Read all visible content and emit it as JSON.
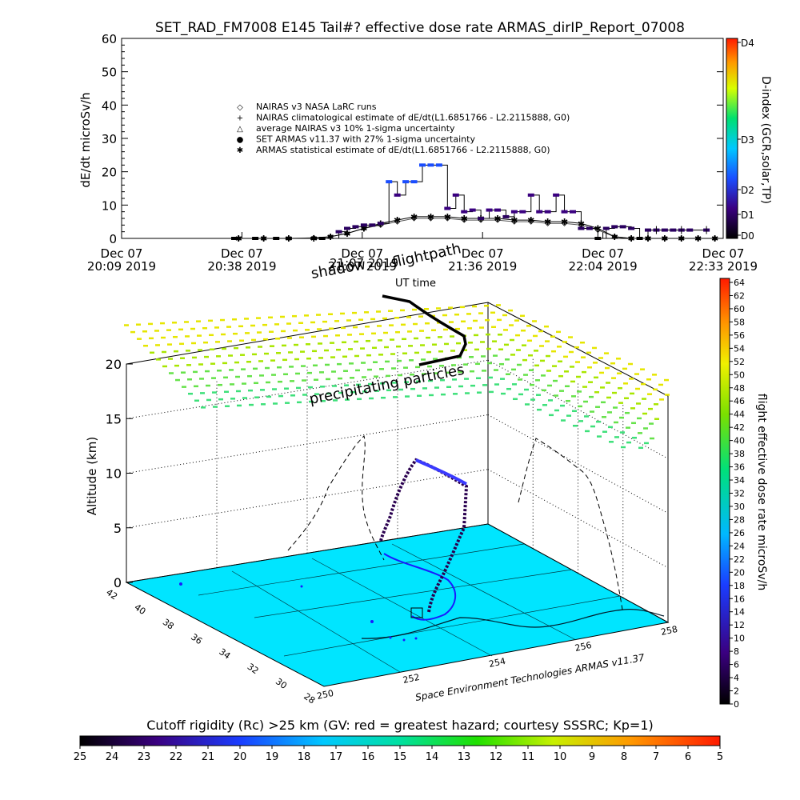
{
  "top": {
    "title": "SET_RAD_FM7008  E145 Tail#? effective dose rate ARMAS_dirIP_Report_07008",
    "ylabel": "dE/dt microSv/h",
    "yticks": [
      "0",
      "10",
      "20",
      "30",
      "40",
      "50",
      "60"
    ],
    "xticks": [
      {
        "l1": "Dec 07",
        "l2": "20:09 2019"
      },
      {
        "l1": "Dec 07",
        "l2": "20:38 2019"
      },
      {
        "l1": "Dec 07",
        "l2": "21:07 2019"
      },
      {
        "l1": "Dec 07",
        "l2": "21:36 2019"
      },
      {
        "l1": "Dec 07",
        "l2": "22:04 2019"
      },
      {
        "l1": "Dec 07",
        "l2": "22:33 2019"
      }
    ],
    "legend": [
      {
        "sym": "◇",
        "text": "NAIRAS v3 NASA LaRC runs"
      },
      {
        "sym": "+",
        "text": "NAIRAS climatological estimate of dE/dt(L1.6851766 - L2.2115888, G0)"
      },
      {
        "sym": "△",
        "text": "average NAIRAS v3 10% 1-sigma uncertainty"
      },
      {
        "sym": "●",
        "text": "SET ARMAS v11.37 with 27% 1-sigma uncertainty"
      },
      {
        "sym": "✱",
        "text": "ARMAS statistical estimate of dE/dt(L1.6851766 - L2.2115888, G0)"
      }
    ],
    "dindex_label": "D-index (GCR,solar,TP)",
    "dindex_ticks": [
      "D4",
      "D3",
      "D2",
      "D1",
      "D0"
    ]
  },
  "chart_data": [
    {
      "type": "line",
      "title": "SET_RAD_FM7008  E145 Tail#? effective dose rate ARMAS_dirIP_Report_07008",
      "xlabel": "",
      "ylabel": "dE/dt microSv/h",
      "ylim": [
        0,
        60
      ],
      "x_unit": "minutes after Dec 07 20:09 2019",
      "xlim": [
        0,
        144
      ],
      "series": [
        {
          "name": "SET ARMAS v11.37 with 27% 1-sigma uncertainty",
          "x": [
            27,
            32,
            37,
            40,
            46,
            48,
            52,
            54,
            56,
            58,
            60,
            62,
            64,
            66,
            68,
            70,
            72,
            74,
            76,
            78,
            80,
            82,
            84,
            86,
            88,
            90,
            92,
            94,
            96,
            98,
            100,
            102,
            104,
            106,
            108,
            110,
            112,
            114,
            116,
            118,
            120,
            122,
            124,
            126,
            128,
            130,
            132,
            134,
            136,
            140
          ],
          "values": [
            0,
            0,
            0,
            0,
            0,
            0,
            2,
            3,
            3.5,
            4,
            4,
            4.5,
            17,
            13,
            17,
            17,
            22,
            22,
            22,
            9,
            13,
            8,
            8.5,
            6,
            8.5,
            8.5,
            6.5,
            8,
            8,
            13,
            8,
            8,
            13,
            8,
            8,
            3,
            3,
            0,
            3,
            3.5,
            3.5,
            3,
            0,
            2.5,
            2.5,
            2.5,
            2.5,
            2.5,
            2.5,
            2.5
          ]
        },
        {
          "name": "ARMAS statistical estimate of dE/dt(L1.6851766 - L2.2115888, G0)",
          "x": [
            28,
            34,
            40,
            46,
            50,
            54,
            58,
            62,
            66,
            70,
            74,
            78,
            82,
            86,
            90,
            94,
            98,
            102,
            106,
            110,
            114,
            118,
            122,
            126,
            130,
            134,
            138,
            142
          ],
          "values": [
            0,
            0,
            0,
            0,
            0.5,
            1.5,
            3,
            4.5,
            5.5,
            6.5,
            6.5,
            6.5,
            6,
            6,
            6,
            5.5,
            5.5,
            5,
            5,
            4.5,
            3,
            0.5,
            0,
            0,
            0,
            0,
            0,
            0
          ]
        },
        {
          "name": "NAIRAS v3 NASA LaRC runs",
          "x": [
            28,
            34,
            40,
            46,
            50,
            54,
            58,
            62,
            66,
            70,
            74,
            78,
            82,
            86,
            90,
            94,
            98,
            102,
            106,
            110,
            114,
            118,
            122,
            126,
            130,
            134,
            138,
            142
          ],
          "values": [
            0,
            0,
            0,
            0.2,
            0.5,
            1.5,
            3,
            4,
            5,
            6,
            6,
            6,
            5.5,
            5.5,
            5.5,
            5,
            5,
            4.5,
            4.5,
            4,
            2.5,
            0.5,
            0,
            0,
            0,
            0,
            0,
            0
          ]
        }
      ]
    },
    {
      "type": "scatter",
      "title": "",
      "zlabel": "Altitude (km)",
      "zticks": [
        "0",
        "5",
        "10",
        "15",
        "20"
      ],
      "xticks_lon": [
        "250",
        "252",
        "254",
        "256",
        "258"
      ],
      "yticks_lat": [
        "28",
        "30",
        "32",
        "34",
        "36",
        "38",
        "40",
        "42"
      ],
      "colorbar_label": "flight effective dose rate microSv/h",
      "colorbar_ticks": [
        "0",
        "2",
        "4",
        "6",
        "8",
        "10",
        "12",
        "14",
        "16",
        "18",
        "20",
        "22",
        "24",
        "26",
        "28",
        "30",
        "32",
        "34",
        "36",
        "38",
        "40",
        "42",
        "44",
        "46",
        "48",
        "50",
        "52",
        "54",
        "56",
        "58",
        "60",
        "62",
        "64"
      ]
    }
  ],
  "annotations": {
    "shadow": "shadow",
    "flightpath": "flightpath",
    "ut_time": "UT time",
    "overlap": "21:07 2019",
    "precip": "precipitating particles",
    "credit": "Space Environment Technologies ARMAS v11.37"
  },
  "bottom": {
    "label": "Cutoff rigidity (Rc) >25 km (GV: red = greatest hazard; courtesy SSSRC; Kp=1)",
    "ticks": [
      "25",
      "24",
      "23",
      "22",
      "21",
      "20",
      "19",
      "18",
      "17",
      "16",
      "15",
      "14",
      "13",
      "12",
      "11",
      "10",
      "9",
      "8",
      "7",
      "6",
      "5"
    ]
  },
  "colors": {
    "rigidity_plane": "#00e5ff",
    "armas": "#1a1aff",
    "axis": "#000000"
  }
}
